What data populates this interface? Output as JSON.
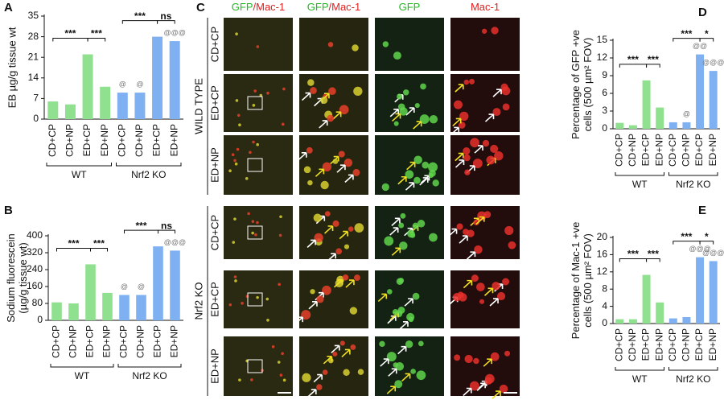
{
  "chart_data": [
    {
      "type": "bar",
      "panel": "A",
      "ylabel": [
        "EB µg/g tissue wt"
      ],
      "categories": [
        "CD+CP",
        "CD+NP",
        "ED+CP",
        "ED+NP",
        "CD+CP",
        "CD+NP",
        "ED+CP",
        "ED+NP"
      ],
      "values": [
        6,
        5,
        22,
        11,
        9,
        9,
        28,
        26.5
      ],
      "colors": [
        "#8fe08f",
        "#8fe08f",
        "#8fe08f",
        "#8fe08f",
        "#7eb0f2",
        "#7eb0f2",
        "#7eb0f2",
        "#7eb0f2"
      ],
      "ylim": [
        0,
        35
      ],
      "yticks": [
        0,
        7,
        14,
        21,
        28,
        35
      ],
      "groups": [
        "WT",
        "Nrf2 KO"
      ],
      "brackets": [
        "***",
        "***",
        "***",
        "ns"
      ],
      "bar_marks": [
        null,
        null,
        null,
        null,
        "@",
        "@",
        null,
        "@@@"
      ]
    },
    {
      "type": "bar",
      "panel": "B",
      "ylabel": [
        "Sodium fluorescein",
        "(µg/g tissue wt)"
      ],
      "categories": [
        "CD+CP",
        "CD+NP",
        "ED+CP",
        "ED+NP",
        "CD+CP",
        "CD+NP",
        "ED+CP",
        "ED+NP"
      ],
      "values": [
        85,
        80,
        265,
        130,
        120,
        120,
        350,
        330
      ],
      "colors": [
        "#8fe08f",
        "#8fe08f",
        "#8fe08f",
        "#8fe08f",
        "#7eb0f2",
        "#7eb0f2",
        "#7eb0f2",
        "#7eb0f2"
      ],
      "ylim": [
        0,
        400
      ],
      "yticks": [
        0,
        80,
        160,
        240,
        320,
        400
      ],
      "groups": [
        "WT",
        "Nrf2 KO"
      ],
      "brackets": [
        "***",
        "***",
        "***",
        "ns"
      ],
      "bar_marks": [
        null,
        null,
        null,
        null,
        "@",
        "@",
        null,
        "@@@"
      ]
    },
    {
      "type": "bar",
      "panel": "D",
      "ylabel": [
        "Percentage of GFP +ve",
        "cells (500 µm² FOV)"
      ],
      "categories": [
        "CD+CP",
        "CD+NP",
        "ED+CP",
        "ED+NP",
        "CD+CP",
        "CD+NP",
        "ED+CP",
        "ED+NP"
      ],
      "values": [
        1,
        0.6,
        8.2,
        3.6,
        1.1,
        1.1,
        12.6,
        9.8
      ],
      "colors": [
        "#8fe08f",
        "#8fe08f",
        "#8fe08f",
        "#8fe08f",
        "#7eb0f2",
        "#7eb0f2",
        "#7eb0f2",
        "#7eb0f2"
      ],
      "ylim": [
        0,
        15
      ],
      "yticks": [
        0,
        3,
        6,
        9,
        12,
        15
      ],
      "groups": [
        "WT",
        "Nrf2 KO"
      ],
      "brackets": [
        "***",
        "***",
        "***",
        "*"
      ],
      "bar_marks": [
        null,
        null,
        null,
        null,
        null,
        "@",
        "@@",
        "@@@"
      ]
    },
    {
      "type": "bar",
      "panel": "E",
      "ylabel": [
        "Percentage of Mac-1 +ve",
        "cells (500 µm² FOV)"
      ],
      "categories": [
        "CD+CP",
        "CD+NP",
        "ED+CP",
        "ED+NP",
        "CD+CP",
        "CD+NP",
        "ED+CP",
        "ED+NP"
      ],
      "values": [
        1,
        1,
        11.3,
        4.9,
        1.2,
        1.5,
        15.4,
        14.5
      ],
      "colors": [
        "#8fe08f",
        "#8fe08f",
        "#8fe08f",
        "#8fe08f",
        "#7eb0f2",
        "#7eb0f2",
        "#7eb0f2",
        "#7eb0f2"
      ],
      "ylim": [
        0,
        20
      ],
      "yticks": [
        0,
        4,
        8,
        12,
        16,
        20
      ],
      "groups": [
        "WT",
        "Nrf2 KO"
      ],
      "brackets": [
        "***",
        "***",
        "***",
        "*"
      ],
      "bar_marks": [
        null,
        null,
        null,
        null,
        null,
        null,
        "@@@",
        "@@@"
      ]
    }
  ],
  "panel_c": {
    "panel": "C",
    "columns": [
      {
        "parts": [
          "GFP",
          "/Mac-1"
        ],
        "colors": [
          "#22b822",
          "#e02020"
        ]
      },
      {
        "parts": [
          "GFP",
          "/Mac-1"
        ],
        "colors": [
          "#22b822",
          "#e02020"
        ]
      },
      {
        "parts": [
          "GFP"
        ],
        "colors": [
          "#22b822"
        ]
      },
      {
        "parts": [
          "Mac-1"
        ],
        "colors": [
          "#e02020"
        ]
      }
    ],
    "groups": [
      {
        "label": "WILD TYPE",
        "rows": [
          "CD+CP",
          "ED+CP",
          "ED+NP"
        ]
      },
      {
        "label": "Nrf2 KO",
        "rows": [
          "CD+CP",
          "ED+CP",
          "ED+NP"
        ]
      }
    ]
  }
}
